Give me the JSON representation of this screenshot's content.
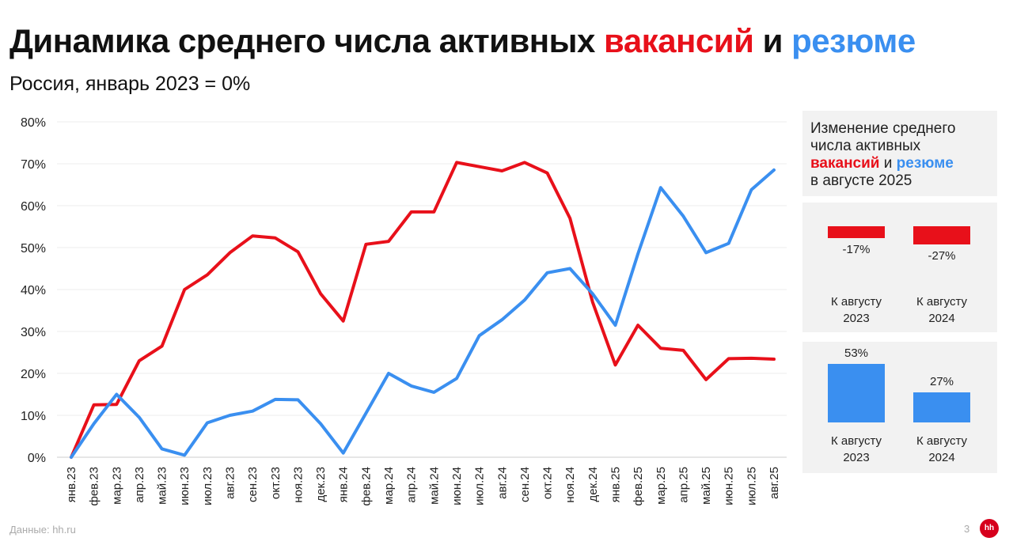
{
  "header": {
    "title_part1": "Динамика среднего числа активных ",
    "title_vac": "вакансий",
    "title_and": " и ",
    "title_res": "резюме",
    "subtitle": "Россия, январь 2023 = 0%"
  },
  "colors": {
    "vacancies": "#e8101a",
    "resumes": "#3a8ff0",
    "grid": "#eeeeee"
  },
  "chart_data": {
    "type": "line",
    "title": "Динамика среднего числа активных вакансий и резюме",
    "subtitle": "Россия, январь 2023 = 0%",
    "ylim": [
      0,
      80
    ],
    "yticks": [
      "0%",
      "10%",
      "20%",
      "30%",
      "40%",
      "50%",
      "60%",
      "70%",
      "80%"
    ],
    "grid": true,
    "categories": [
      "янв.23",
      "фев.23",
      "мар.23",
      "апр.23",
      "май.23",
      "июн.23",
      "июл.23",
      "авг.23",
      "сен.23",
      "окт.23",
      "ноя.23",
      "дек.23",
      "янв.24",
      "фев.24",
      "мар.24",
      "апр.24",
      "май.24",
      "июн.24",
      "июл.24",
      "авг.24",
      "сен.24",
      "окт.24",
      "ноя.24",
      "дек.24",
      "янв.25",
      "фев.25",
      "мар.25",
      "апр.25",
      "май.25",
      "июн.25",
      "июл.25",
      "авг.25"
    ],
    "series": [
      {
        "name": "вакансий",
        "color": "#e8101a",
        "values": [
          0,
          12.5,
          12.6,
          23,
          26.5,
          40,
          43.5,
          48.8,
          52.8,
          52.3,
          49,
          39,
          32.5,
          50.8,
          51.5,
          58.5,
          58.5,
          70.3,
          69.3,
          68.3,
          70.3,
          67.8,
          57,
          37,
          22,
          31.5,
          26,
          25.5,
          18.5,
          23.5,
          23.6,
          23.4
        ]
      },
      {
        "name": "резюме",
        "color": "#3a8ff0",
        "values": [
          0,
          8,
          15,
          9.5,
          2,
          0.5,
          8.2,
          10,
          11,
          13.8,
          13.7,
          8,
          1,
          10.5,
          20,
          17,
          15.5,
          18.8,
          29,
          32.8,
          37.5,
          44,
          45,
          39,
          31.5,
          48.5,
          64.3,
          57.5,
          48.8,
          51,
          63.8,
          68.5
        ]
      }
    ]
  },
  "side_panel": {
    "head_line1": "Изменение среднего",
    "head_line2": "числа активных",
    "head_vac": "вакансий",
    "head_and": " и ",
    "head_res": "резюме",
    "head_line4": "в августе 2025",
    "vacancies": [
      {
        "value": -17,
        "label": "-17%",
        "caption_line1": "К августу",
        "caption_line2": "2023"
      },
      {
        "value": -27,
        "label": "-27%",
        "caption_line1": "К августу",
        "caption_line2": "2024"
      }
    ],
    "resumes": [
      {
        "value": 53,
        "label": "53%",
        "caption_line1": "К августу",
        "caption_line2": "2023"
      },
      {
        "value": 27,
        "label": "27%",
        "caption_line1": "К августу",
        "caption_line2": "2024"
      }
    ]
  },
  "footer": {
    "source": "Данные: hh.ru",
    "page": "3",
    "logo": "hh"
  }
}
